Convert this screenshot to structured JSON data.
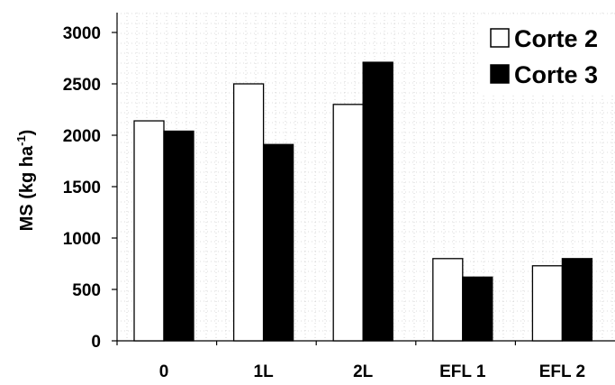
{
  "chart_data": {
    "type": "bar",
    "categories": [
      "0",
      "1L",
      "2L",
      "EFL 1",
      "EFL 2"
    ],
    "series": [
      {
        "name": "Corte 2",
        "color": "#ffffff",
        "values": [
          2140,
          2500,
          2300,
          800,
          730
        ]
      },
      {
        "name": "Corte 3",
        "color": "#000000",
        "values": [
          2040,
          1910,
          2710,
          620,
          800
        ]
      }
    ],
    "ylabel": {
      "main": "MS (kg ha",
      "sup": "-1",
      "close": ")"
    },
    "ylim": [
      0,
      3000
    ],
    "yticks": [
      0,
      500,
      1000,
      1500,
      2000,
      2500,
      3000
    ],
    "grid": true,
    "legend_position": "top-right"
  }
}
